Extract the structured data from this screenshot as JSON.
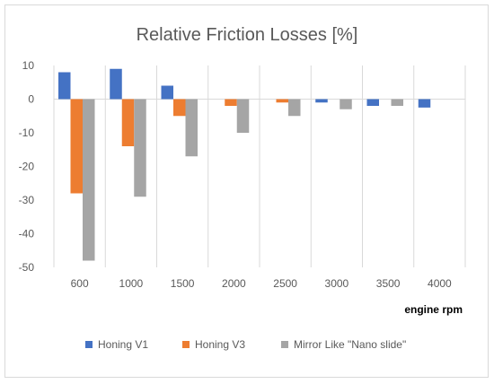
{
  "chart_data": {
    "type": "bar",
    "title": "Relative Friction Losses [%]",
    "xlabel": "engine rpm",
    "ylabel": "",
    "categories": [
      "600",
      "1000",
      "1500",
      "2000",
      "2500",
      "3000",
      "3500",
      "4000"
    ],
    "ylim": [
      -50,
      10
    ],
    "yticks": [
      10,
      0,
      -10,
      -20,
      -30,
      -40,
      -50
    ],
    "grid": "vertical category separators",
    "legend": "bottom",
    "series": [
      {
        "name": "Honing V1",
        "color": "#4472c4",
        "values": [
          8,
          9,
          4,
          0,
          0,
          -1,
          -2,
          -2.5
        ]
      },
      {
        "name": "Honing V3",
        "color": "#ed7d31",
        "values": [
          -28,
          -14,
          -5,
          -2,
          -1,
          0,
          0,
          0
        ]
      },
      {
        "name": "Mirror Like \"Nano slide\"",
        "color": "#a5a5a5",
        "values": [
          -48,
          -29,
          -17,
          -10,
          -5,
          -3,
          -2,
          0
        ]
      }
    ]
  }
}
